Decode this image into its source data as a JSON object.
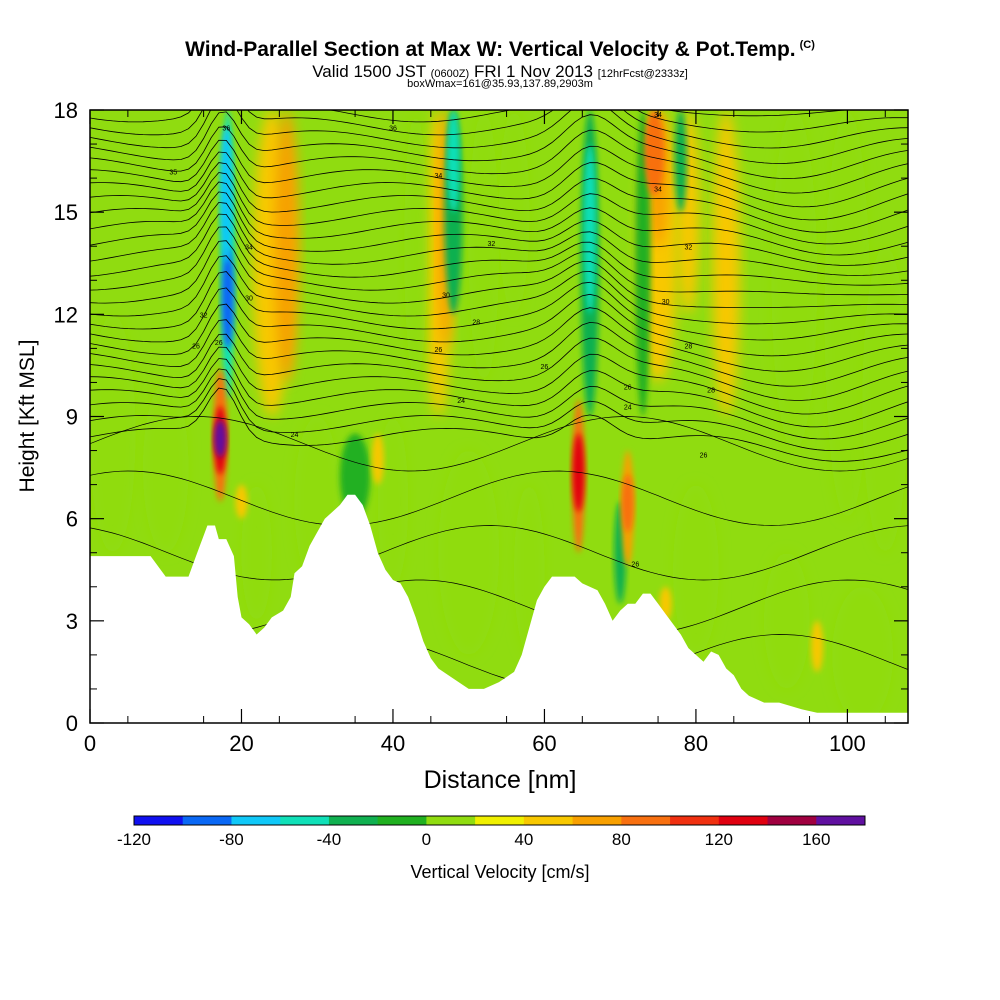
{
  "title": {
    "main": "Wind-Parallel Section at Max W: Vertical Velocity & Pot.Temp.",
    "copyright": "(C)",
    "valid_prefix": "Valid 1500 JST",
    "valid_z": "(0600Z)",
    "valid_date": "FRI 1 Nov 2013",
    "forecast": "[12hrFcst@2333z]",
    "box_info": "boxWmax=161@35.93,137.89,2903m"
  },
  "chart_data": {
    "type": "heatmap",
    "xlabel": "Distance [nm]",
    "ylabel": "Height [Kft MSL]",
    "xlim": [
      0,
      108
    ],
    "ylim": [
      0,
      18
    ],
    "x_ticks": [
      "0",
      "20",
      "40",
      "60",
      "80",
      "100"
    ],
    "y_ticks": [
      "0",
      "3",
      "6",
      "9",
      "12",
      "15",
      "18"
    ],
    "colorbar": {
      "title": "Vertical Velocity [cm/s]",
      "range": [
        -120,
        180
      ],
      "step": 20,
      "tick_labels": [
        "-120",
        "-80",
        "-40",
        "0",
        "40",
        "80",
        "120",
        "160"
      ],
      "colors": [
        "#1010f0",
        "#0a68f5",
        "#10c8f8",
        "#10e0b8",
        "#10b050",
        "#20b020",
        "#90dc10",
        "#f0f000",
        "#f8c800",
        "#f8a000",
        "#f87010",
        "#f03010",
        "#e00010",
        "#a00040",
        "#6010a0"
      ]
    },
    "terrain_kft": [
      [
        0,
        4.9
      ],
      [
        8,
        4.9
      ],
      [
        10,
        4.3
      ],
      [
        13,
        4.3
      ],
      [
        14,
        4.9
      ],
      [
        14.5,
        5.2
      ],
      [
        15,
        5.5
      ],
      [
        15.5,
        5.8
      ],
      [
        16.5,
        5.8
      ],
      [
        17,
        5.4
      ],
      [
        18,
        5.4
      ],
      [
        19,
        4.9
      ],
      [
        19.5,
        3.7
      ],
      [
        20,
        3.1
      ],
      [
        21,
        2.9
      ],
      [
        22,
        2.6
      ],
      [
        23,
        2.8
      ],
      [
        24,
        3.1
      ],
      [
        25.5,
        3.3
      ],
      [
        26.5,
        3.7
      ],
      [
        27,
        4.4
      ],
      [
        28,
        4.6
      ],
      [
        29,
        5.2
      ],
      [
        30,
        5.6
      ],
      [
        31,
        6.0
      ],
      [
        32,
        6.2
      ],
      [
        33,
        6.4
      ],
      [
        34,
        6.7
      ],
      [
        35,
        6.7
      ],
      [
        36,
        6.4
      ],
      [
        37,
        5.8
      ],
      [
        38,
        5.0
      ],
      [
        39,
        4.5
      ],
      [
        40,
        4.2
      ],
      [
        41,
        4.1
      ],
      [
        42,
        3.7
      ],
      [
        43,
        3.1
      ],
      [
        44,
        2.4
      ],
      [
        45,
        1.9
      ],
      [
        46,
        1.6
      ],
      [
        48,
        1.3
      ],
      [
        50,
        1.0
      ],
      [
        52,
        1.0
      ],
      [
        54,
        1.2
      ],
      [
        56,
        1.5
      ],
      [
        57,
        2.0
      ],
      [
        58,
        2.8
      ],
      [
        59,
        3.6
      ],
      [
        60,
        4.0
      ],
      [
        61,
        4.3
      ],
      [
        62,
        4.3
      ],
      [
        64,
        4.3
      ],
      [
        65,
        4.1
      ],
      [
        67,
        3.9
      ],
      [
        68,
        3.5
      ],
      [
        69,
        3.0
      ],
      [
        70,
        3.3
      ],
      [
        71,
        3.5
      ],
      [
        72,
        3.5
      ],
      [
        73,
        3.8
      ],
      [
        74,
        3.8
      ],
      [
        75,
        3.5
      ],
      [
        76,
        3.2
      ],
      [
        77,
        2.9
      ],
      [
        78,
        2.6
      ],
      [
        79,
        2.2
      ],
      [
        80,
        2.0
      ],
      [
        81,
        1.8
      ],
      [
        82,
        2.1
      ],
      [
        83,
        2.0
      ],
      [
        84,
        1.6
      ],
      [
        85,
        1.4
      ],
      [
        86,
        1.0
      ],
      [
        87,
        0.8
      ],
      [
        89,
        0.6
      ],
      [
        91,
        0.6
      ],
      [
        94,
        0.4
      ],
      [
        96,
        0.3
      ],
      [
        100,
        0.3
      ],
      [
        104,
        0.3
      ],
      [
        108,
        0.3
      ]
    ],
    "updrafts": [
      {
        "x": 17.2,
        "y": 8.3,
        "peak_cm_s": 160
      },
      {
        "x": 64.5,
        "y": 7.2,
        "peak_cm_s": 120
      },
      {
        "x": 71.0,
        "y": 6.6,
        "peak_cm_s": 80
      },
      {
        "x": 74.5,
        "y": 16.8,
        "peak_cm_s": 80
      }
    ],
    "downdrafts": [
      {
        "x": 18.2,
        "y": 12.5,
        "peak_cm_s": -120
      }
    ],
    "contour_labels": [
      "36",
      "36",
      "34",
      "35",
      "34",
      "34",
      "34",
      "32",
      "32",
      "30",
      "30",
      "30",
      "32",
      "28",
      "28",
      "26",
      "26",
      "24",
      "24",
      "26",
      "24",
      "28",
      "26",
      "26",
      "26",
      "26"
    ]
  }
}
